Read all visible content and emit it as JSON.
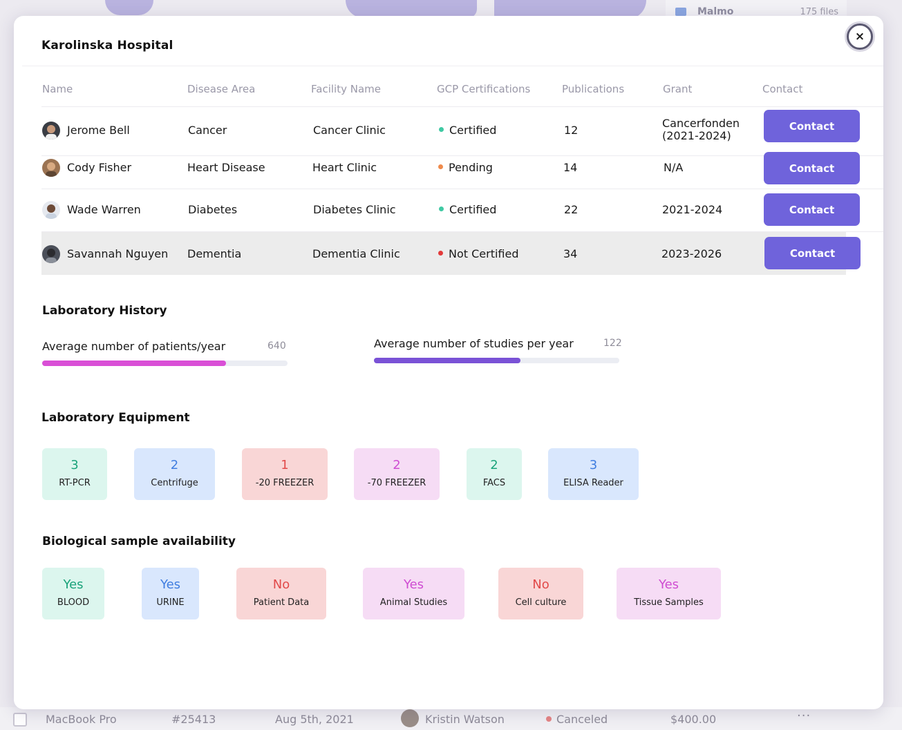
{
  "background": {
    "file_item": {
      "name": "Malmo",
      "count": "175 files"
    },
    "bottom_row": {
      "product": "MacBook Pro",
      "order": "#25413",
      "date": "Aug 5th, 2021",
      "customer": "Kristin Watson",
      "status": "Canceled",
      "amount": "$400.00"
    }
  },
  "modal": {
    "title": "Karolinska Hospital",
    "close_icon": "×"
  },
  "table": {
    "headers": [
      "Name",
      "Disease Area",
      "Facility Name",
      "GCP Certifications",
      "Publications",
      "Grant",
      "Contact"
    ],
    "rows": [
      {
        "name": "Jerome Bell",
        "disease": "Cancer",
        "facility": "Cancer Clinic",
        "status": "Certified",
        "status_color": "#3fc9a3",
        "publications": "12",
        "grant_line1": "Cancerfonden",
        "grant_line2": "(2021-2024)",
        "contact": "Contact"
      },
      {
        "name": "Cody Fisher",
        "disease": "Heart Disease",
        "facility": "Heart Clinic",
        "status": "Pending",
        "status_color": "#ef8a4b",
        "publications": "14",
        "grant_line1": "N/A",
        "grant_line2": "",
        "contact": "Contact"
      },
      {
        "name": "Wade Warren",
        "disease": "Diabetes",
        "facility": "Diabetes Clinic",
        "status": "Certified",
        "status_color": "#3fc9a3",
        "publications": "22",
        "grant_line1": "2021-2024",
        "grant_line2": "",
        "contact": "Contact"
      },
      {
        "name": "Savannah Nguyen",
        "disease": "Dementia",
        "facility": "Dementia Clinic",
        "status": "Not Certified",
        "status_color": "#e23a3a",
        "publications": "34",
        "grant_line1": "2023-2026",
        "grant_line2": "",
        "contact": "Contact"
      }
    ]
  },
  "lab_history": {
    "title": "Laboratory History",
    "patients": {
      "label": "Average number of patients/year",
      "value": "640",
      "fill_fraction": 0.75,
      "color": "#d94fd6"
    },
    "studies": {
      "label": "Average number of studies per year",
      "value": "122",
      "fill_fraction": 0.597,
      "color": "#7a52d6"
    }
  },
  "equipment": {
    "title": "Laboratory Equipment",
    "items": [
      {
        "count": "3",
        "label": "RT-PCR",
        "tone": "green"
      },
      {
        "count": "2",
        "label": "Centrifuge",
        "tone": "blue"
      },
      {
        "count": "1",
        "label": "-20 FREEZER",
        "tone": "red"
      },
      {
        "count": "2",
        "label": "-70 FREEZER",
        "tone": "pink"
      },
      {
        "count": "2",
        "label": "FACS",
        "tone": "green"
      },
      {
        "count": "3",
        "label": "ELISA Reader",
        "tone": "blue"
      }
    ]
  },
  "samples": {
    "title": "Biological sample availability",
    "items": [
      {
        "value": "Yes",
        "label": "BLOOD",
        "tone": "green"
      },
      {
        "value": "Yes",
        "label": "URINE",
        "tone": "blue"
      },
      {
        "value": "No",
        "label": "Patient Data",
        "tone": "red"
      },
      {
        "value": "Yes",
        "label": "Animal Studies",
        "tone": "pink"
      },
      {
        "value": "No",
        "label": "Cell culture",
        "tone": "red"
      },
      {
        "value": "Yes",
        "label": "Tissue Samples",
        "tone": "pink"
      }
    ]
  }
}
